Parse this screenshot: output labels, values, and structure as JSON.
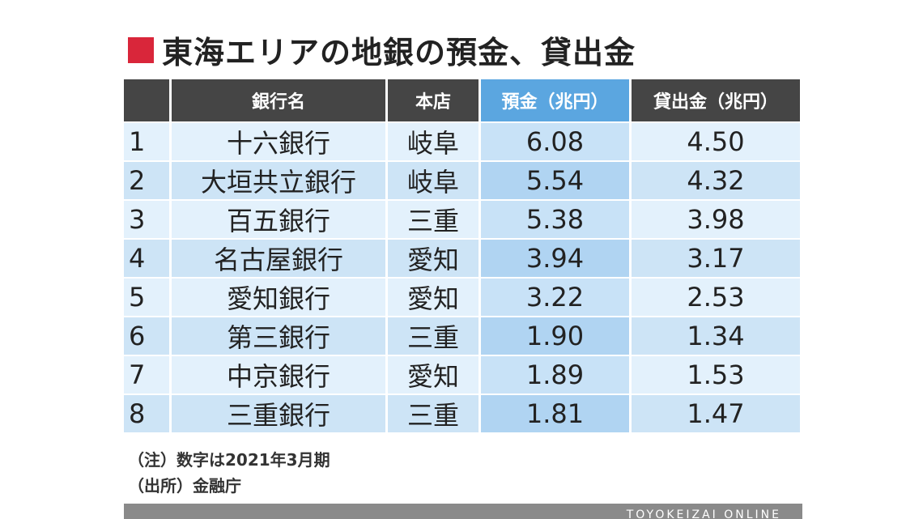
{
  "title": "東海エリアの地銀の預金、貸出金",
  "header": {
    "rank": "",
    "bank": "銀行名",
    "hq": "本店",
    "deposit": "預金（兆円）",
    "loan": "貸出金（兆円）"
  },
  "rows": [
    {
      "rank": "1",
      "bank": "十六銀行",
      "hq": "岐阜",
      "deposit": "6.08",
      "loan": "4.50"
    },
    {
      "rank": "2",
      "bank": "大垣共立銀行",
      "hq": "岐阜",
      "deposit": "5.54",
      "loan": "4.32"
    },
    {
      "rank": "3",
      "bank": "百五銀行",
      "hq": "三重",
      "deposit": "5.38",
      "loan": "3.98"
    },
    {
      "rank": "4",
      "bank": "名古屋銀行",
      "hq": "愛知",
      "deposit": "3.94",
      "loan": "3.17"
    },
    {
      "rank": "5",
      "bank": "愛知銀行",
      "hq": "愛知",
      "deposit": "3.22",
      "loan": "2.53"
    },
    {
      "rank": "6",
      "bank": "第三銀行",
      "hq": "三重",
      "deposit": "1.90",
      "loan": "1.34"
    },
    {
      "rank": "7",
      "bank": "中京銀行",
      "hq": "愛知",
      "deposit": "1.89",
      "loan": "1.53"
    },
    {
      "rank": "8",
      "bank": "三重銀行",
      "hq": "三重",
      "deposit": "1.81",
      "loan": "1.47"
    }
  ],
  "notes": {
    "note": "（注）数字は2021年3月期",
    "source": "（出所）金融庁"
  },
  "footer": "TOYOKEIZAI ONLINE",
  "colors": {
    "title_mark": "#d9263a",
    "header_bg": "#454545",
    "header_highlight": "#5ba6e0",
    "row_light": "#e3f1fc",
    "row_dark": "#cde4f6"
  }
}
